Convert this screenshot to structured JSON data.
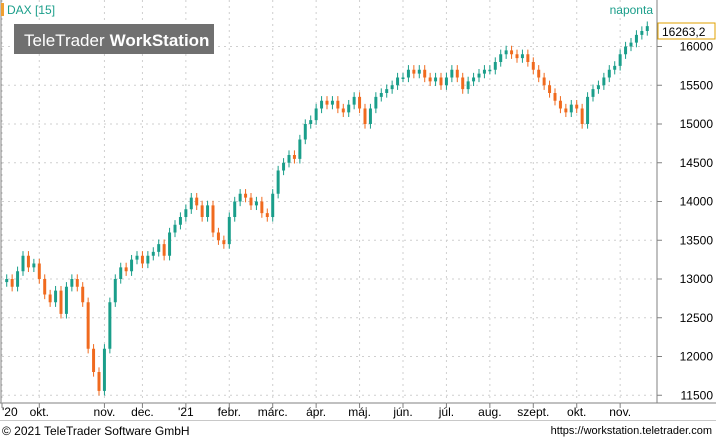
{
  "header": {
    "symbol_label": "DAX [15]",
    "interval_label": "naponta",
    "watermark_brand": "TeleTrader",
    "watermark_product": "WorkStation"
  },
  "footer": {
    "copyright": "© 2021 TeleTrader Software GmbH",
    "url": "https://workstation.teletrader.com"
  },
  "colors": {
    "up": "#1a9e8a",
    "down": "#f06a1e",
    "grid": "#cfcfcf",
    "symbol_marker": "#f0a030",
    "watermark_bg": "#707070",
    "last_price_border": "#e0a000"
  },
  "chart_data": {
    "type": "candlestick",
    "title": "DAX",
    "interval": "naponta",
    "last_price_label": "16263,2",
    "y_axis": {
      "range": [
        11400,
        16600
      ],
      "ticks": [
        11500,
        12000,
        12500,
        13000,
        13500,
        14000,
        14500,
        15000,
        15500,
        16000
      ]
    },
    "x_axis": {
      "tick_labels": [
        "'20",
        "okt.",
        "nov.",
        "dec.",
        "'21",
        "febr.",
        "márc.",
        "ápr.",
        "máj.",
        "jún.",
        "júl.",
        "aug.",
        "szept.",
        "okt.",
        "nov."
      ]
    },
    "series": [
      {
        "period": "2020-09",
        "values": [
          13000,
          12900,
          13100,
          13300,
          13150,
          13200
        ]
      },
      {
        "period": "2020-10",
        "values": [
          13000,
          12800,
          12700,
          12850,
          12550,
          12900,
          13000,
          12900,
          12700,
          12100,
          11800,
          11556
        ]
      },
      {
        "period": "2020-11",
        "values": [
          12100,
          12700,
          13000,
          13150,
          13100,
          13250,
          13300
        ]
      },
      {
        "period": "2020-12",
        "values": [
          13200,
          13300,
          13350,
          13450,
          13300,
          13600,
          13700,
          13800
        ]
      },
      {
        "period": "2021-01",
        "values": [
          13900,
          14050,
          13950,
          13800,
          13950,
          13600,
          13500,
          13450
        ]
      },
      {
        "period": "2021-02",
        "values": [
          13800,
          14000,
          14100,
          14050,
          13950,
          14000,
          13850,
          13800
        ]
      },
      {
        "period": "2021-03",
        "values": [
          14100,
          14400,
          14500,
          14600,
          14550,
          14800,
          15000,
          15050
        ]
      },
      {
        "period": "2021-04",
        "values": [
          15200,
          15300,
          15250,
          15300,
          15200,
          15150,
          15250,
          15350
        ]
      },
      {
        "period": "2021-05",
        "values": [
          15200,
          15000,
          15200,
          15350,
          15400,
          15450,
          15500,
          15600
        ]
      },
      {
        "period": "2021-06",
        "values": [
          15600,
          15700,
          15650,
          15700,
          15600,
          15550,
          15600,
          15500
        ]
      },
      {
        "period": "2021-07",
        "values": [
          15600,
          15700,
          15600,
          15450,
          15550,
          15600,
          15650,
          15700
        ]
      },
      {
        "period": "2021-08",
        "values": [
          15700,
          15800,
          15900,
          15950,
          15900,
          15850,
          15900,
          15800
        ]
      },
      {
        "period": "2021-09",
        "values": [
          15700,
          15600,
          15500,
          15400,
          15300,
          15200,
          15150,
          15250
        ]
      },
      {
        "period": "2021-10",
        "values": [
          15200,
          15000,
          15350,
          15450,
          15500,
          15600,
          15700,
          15750
        ]
      },
      {
        "period": "2021-11",
        "values": [
          15900,
          16000,
          16050,
          16150,
          16200,
          16263
        ]
      }
    ]
  }
}
